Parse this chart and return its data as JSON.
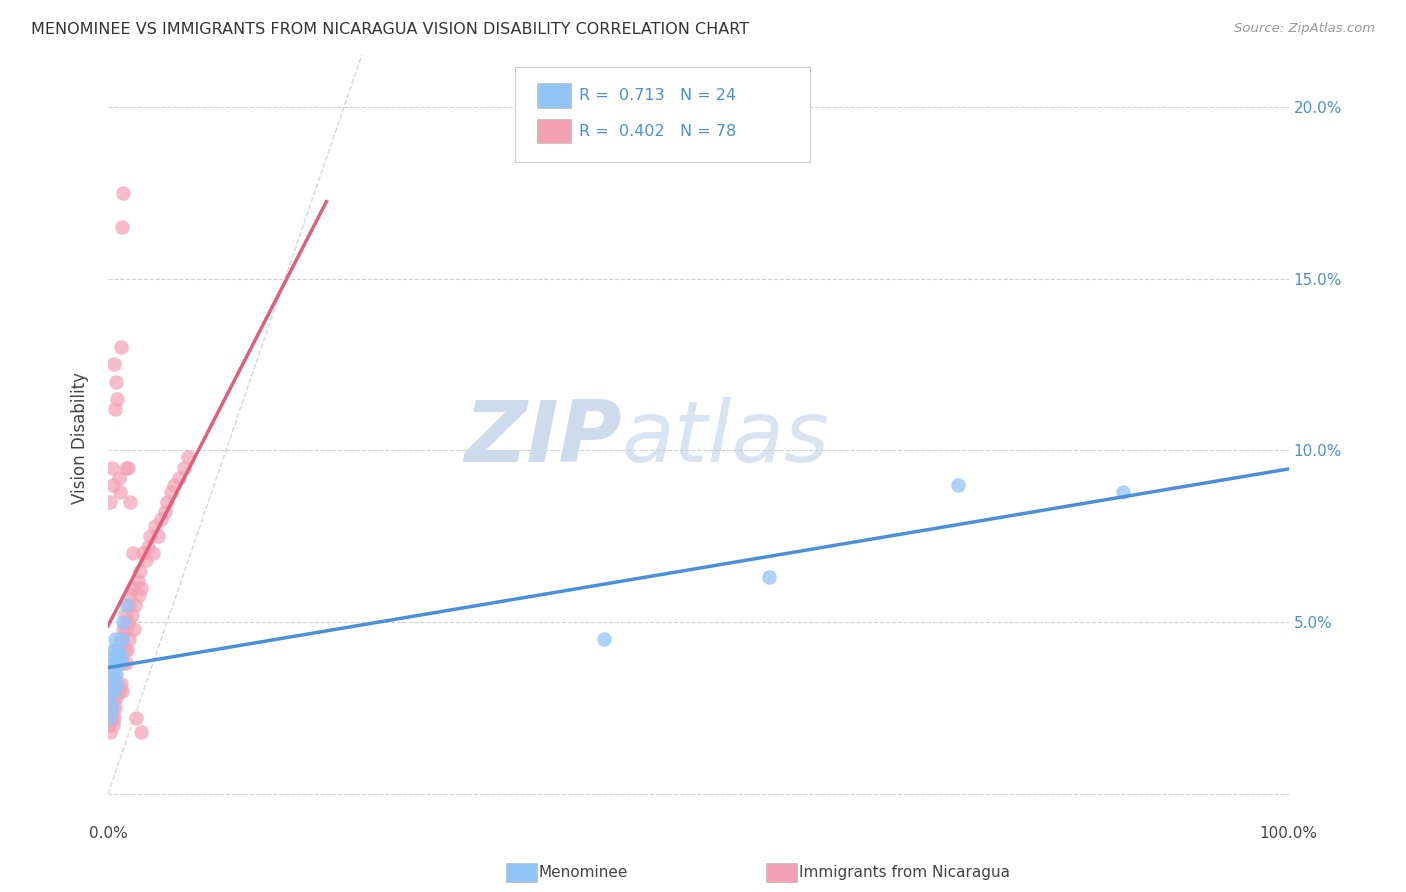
{
  "title": "MENOMINEE VS IMMIGRANTS FROM NICARAGUA VISION DISABILITY CORRELATION CHART",
  "source": "Source: ZipAtlas.com",
  "ylabel": "Vision Disability",
  "xlim": [
    0,
    1.0
  ],
  "ylim": [
    -0.008,
    0.215
  ],
  "yticks": [
    0.0,
    0.05,
    0.1,
    0.15,
    0.2
  ],
  "ytick_labels_right": [
    "",
    "5.0%",
    "10.0%",
    "15.0%",
    "20.0%"
  ],
  "xticks": [
    0.0,
    0.25,
    0.5,
    0.75,
    1.0
  ],
  "xtick_labels": [
    "0.0%",
    "",
    "",
    "",
    "100.0%"
  ],
  "color_menominee": "#92c5f7",
  "color_nicaragua": "#f4a0b5",
  "color_trend_menominee": "#4a90d9",
  "color_trend_nicaragua": "#e0607a",
  "color_diagonal": "#cccccc",
  "watermark_zip_color": "#c8d8ea",
  "watermark_atlas_color": "#b8cfe8",
  "background_color": "#ffffff",
  "grid_color": "#cccccc",
  "menominee_x": [
    0.001,
    0.002,
    0.002,
    0.003,
    0.003,
    0.004,
    0.004,
    0.005,
    0.005,
    0.006,
    0.006,
    0.007,
    0.008,
    0.008,
    0.009,
    0.01,
    0.011,
    0.012,
    0.013,
    0.015,
    0.42,
    0.56,
    0.72,
    0.86
  ],
  "menominee_y": [
    0.028,
    0.022,
    0.032,
    0.035,
    0.025,
    0.038,
    0.042,
    0.03,
    0.04,
    0.038,
    0.045,
    0.035,
    0.032,
    0.04,
    0.042,
    0.038,
    0.04,
    0.045,
    0.05,
    0.055,
    0.045,
    0.063,
    0.09,
    0.088
  ],
  "nicaragua_x": [
    0.001,
    0.001,
    0.002,
    0.002,
    0.003,
    0.003,
    0.003,
    0.004,
    0.004,
    0.005,
    0.005,
    0.005,
    0.006,
    0.006,
    0.007,
    0.007,
    0.008,
    0.008,
    0.009,
    0.009,
    0.01,
    0.01,
    0.011,
    0.011,
    0.012,
    0.012,
    0.013,
    0.013,
    0.014,
    0.014,
    0.015,
    0.015,
    0.016,
    0.017,
    0.018,
    0.018,
    0.019,
    0.02,
    0.021,
    0.022,
    0.023,
    0.025,
    0.026,
    0.027,
    0.028,
    0.03,
    0.032,
    0.034,
    0.036,
    0.038,
    0.04,
    0.042,
    0.045,
    0.048,
    0.05,
    0.053,
    0.056,
    0.06,
    0.064,
    0.068,
    0.002,
    0.003,
    0.004,
    0.005,
    0.006,
    0.007,
    0.008,
    0.009,
    0.01,
    0.011,
    0.012,
    0.013,
    0.015,
    0.017,
    0.019,
    0.021,
    0.024,
    0.028
  ],
  "nicaragua_y": [
    0.025,
    0.02,
    0.018,
    0.03,
    0.022,
    0.028,
    0.025,
    0.02,
    0.032,
    0.028,
    0.022,
    0.035,
    0.03,
    0.025,
    0.042,
    0.028,
    0.032,
    0.038,
    0.042,
    0.03,
    0.038,
    0.045,
    0.04,
    0.032,
    0.045,
    0.03,
    0.048,
    0.038,
    0.052,
    0.042,
    0.048,
    0.038,
    0.042,
    0.05,
    0.055,
    0.045,
    0.058,
    0.052,
    0.06,
    0.048,
    0.055,
    0.062,
    0.058,
    0.065,
    0.06,
    0.07,
    0.068,
    0.072,
    0.075,
    0.07,
    0.078,
    0.075,
    0.08,
    0.082,
    0.085,
    0.088,
    0.09,
    0.092,
    0.095,
    0.098,
    0.085,
    0.095,
    0.09,
    0.125,
    0.112,
    0.12,
    0.115,
    0.092,
    0.088,
    0.13,
    0.165,
    0.175,
    0.095,
    0.095,
    0.085,
    0.07,
    0.022,
    0.018
  ],
  "nicaragua_trend_x_start": 0.0,
  "nicaragua_trend_x_end": 0.185,
  "menominee_trend_x_start": 0.0,
  "menominee_trend_x_end": 1.0
}
